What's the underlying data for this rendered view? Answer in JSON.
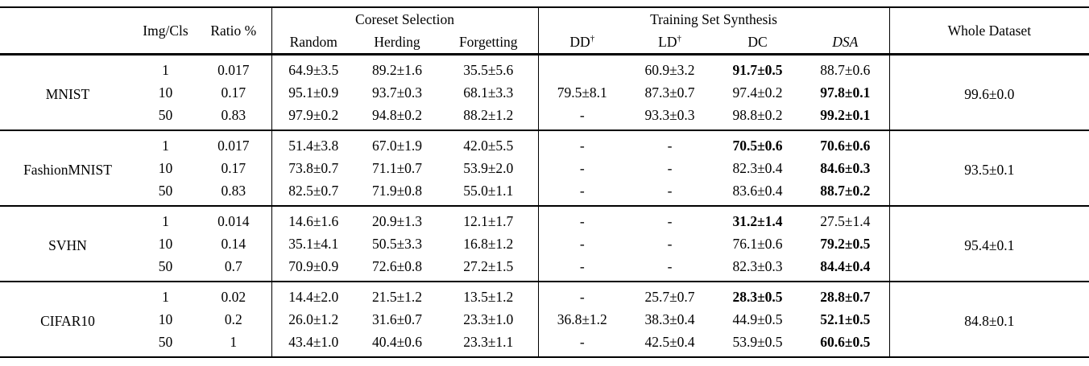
{
  "header": {
    "img_cls": "Img/Cls",
    "ratio": "Ratio %",
    "coreset": "Coreset Selection",
    "synthesis": "Training Set Synthesis",
    "whole": "Whole Dataset",
    "columns": [
      {
        "t": "Random"
      },
      {
        "t": "Herding"
      },
      {
        "t": "Forgetting"
      },
      {
        "t": "DD",
        "sup": "†"
      },
      {
        "t": "LD",
        "sup": "†"
      },
      {
        "t": "DC"
      },
      {
        "t": "DSA",
        "italic": true
      }
    ]
  },
  "groups": [
    {
      "dataset": "MNIST",
      "whole": "99.6±0.0",
      "rows": [
        {
          "img_cls": "1",
          "ratio": "0.017",
          "cells": [
            {
              "t": "64.9±3.5"
            },
            {
              "t": "89.2±1.6"
            },
            {
              "t": "35.5±5.6"
            },
            {
              "t": ""
            },
            {
              "t": "60.9±3.2"
            },
            {
              "t": "91.7±0.5",
              "b": true
            },
            {
              "t": "88.7±0.6"
            }
          ]
        },
        {
          "img_cls": "10",
          "ratio": "0.17",
          "cells": [
            {
              "t": "95.1±0.9"
            },
            {
              "t": "93.7±0.3"
            },
            {
              "t": "68.1±3.3"
            },
            {
              "t": "79.5±8.1"
            },
            {
              "t": "87.3±0.7"
            },
            {
              "t": "97.4±0.2"
            },
            {
              "t": "97.8±0.1",
              "b": true
            }
          ]
        },
        {
          "img_cls": "50",
          "ratio": "0.83",
          "cells": [
            {
              "t": "97.9±0.2"
            },
            {
              "t": "94.8±0.2"
            },
            {
              "t": "88.2±1.2"
            },
            {
              "t": "-"
            },
            {
              "t": "93.3±0.3"
            },
            {
              "t": "98.8±0.2"
            },
            {
              "t": "99.2±0.1",
              "b": true
            }
          ]
        }
      ]
    },
    {
      "dataset": "FashionMNIST",
      "whole": "93.5±0.1",
      "rows": [
        {
          "img_cls": "1",
          "ratio": "0.017",
          "cells": [
            {
              "t": "51.4±3.8"
            },
            {
              "t": "67.0±1.9"
            },
            {
              "t": "42.0±5.5"
            },
            {
              "t": "-"
            },
            {
              "t": "-"
            },
            {
              "t": "70.5±0.6",
              "b": true
            },
            {
              "t": "70.6±0.6",
              "b": true
            }
          ]
        },
        {
          "img_cls": "10",
          "ratio": "0.17",
          "cells": [
            {
              "t": "73.8±0.7"
            },
            {
              "t": "71.1±0.7"
            },
            {
              "t": "53.9±2.0"
            },
            {
              "t": "-"
            },
            {
              "t": "-"
            },
            {
              "t": "82.3±0.4"
            },
            {
              "t": "84.6±0.3",
              "b": true
            }
          ]
        },
        {
          "img_cls": "50",
          "ratio": "0.83",
          "cells": [
            {
              "t": "82.5±0.7"
            },
            {
              "t": "71.9±0.8"
            },
            {
              "t": "55.0±1.1"
            },
            {
              "t": "-"
            },
            {
              "t": "-"
            },
            {
              "t": "83.6±0.4"
            },
            {
              "t": "88.7±0.2",
              "b": true
            }
          ]
        }
      ]
    },
    {
      "dataset": "SVHN",
      "whole": "95.4±0.1",
      "rows": [
        {
          "img_cls": "1",
          "ratio": "0.014",
          "cells": [
            {
              "t": "14.6±1.6"
            },
            {
              "t": "20.9±1.3"
            },
            {
              "t": "12.1±1.7"
            },
            {
              "t": "-"
            },
            {
              "t": "-"
            },
            {
              "t": "31.2±1.4",
              "b": true
            },
            {
              "t": "27.5±1.4"
            }
          ]
        },
        {
          "img_cls": "10",
          "ratio": "0.14",
          "cells": [
            {
              "t": "35.1±4.1"
            },
            {
              "t": "50.5±3.3"
            },
            {
              "t": "16.8±1.2"
            },
            {
              "t": "-"
            },
            {
              "t": "-"
            },
            {
              "t": "76.1±0.6"
            },
            {
              "t": "79.2±0.5",
              "b": true
            }
          ]
        },
        {
          "img_cls": "50",
          "ratio": "0.7",
          "cells": [
            {
              "t": "70.9±0.9"
            },
            {
              "t": "72.6±0.8"
            },
            {
              "t": "27.2±1.5"
            },
            {
              "t": "-"
            },
            {
              "t": "-"
            },
            {
              "t": "82.3±0.3"
            },
            {
              "t": "84.4±0.4",
              "b": true
            }
          ]
        }
      ]
    },
    {
      "dataset": "CIFAR10",
      "whole": "84.8±0.1",
      "rows": [
        {
          "img_cls": "1",
          "ratio": "0.02",
          "cells": [
            {
              "t": "14.4±2.0"
            },
            {
              "t": "21.5±1.2"
            },
            {
              "t": "13.5±1.2"
            },
            {
              "t": "-"
            },
            {
              "t": "25.7±0.7"
            },
            {
              "t": "28.3±0.5",
              "b": true
            },
            {
              "t": "28.8±0.7",
              "b": true
            }
          ]
        },
        {
          "img_cls": "10",
          "ratio": "0.2",
          "cells": [
            {
              "t": "26.0±1.2"
            },
            {
              "t": "31.6±0.7"
            },
            {
              "t": "23.3±1.0"
            },
            {
              "t": "36.8±1.2"
            },
            {
              "t": "38.3±0.4"
            },
            {
              "t": "44.9±0.5"
            },
            {
              "t": "52.1±0.5",
              "b": true
            }
          ]
        },
        {
          "img_cls": "50",
          "ratio": "1",
          "cells": [
            {
              "t": "43.4±1.0"
            },
            {
              "t": "40.4±0.6"
            },
            {
              "t": "23.3±1.1"
            },
            {
              "t": "-"
            },
            {
              "t": "42.5±0.4"
            },
            {
              "t": "53.9±0.5"
            },
            {
              "t": "60.6±0.5",
              "b": true
            }
          ]
        }
      ]
    }
  ]
}
